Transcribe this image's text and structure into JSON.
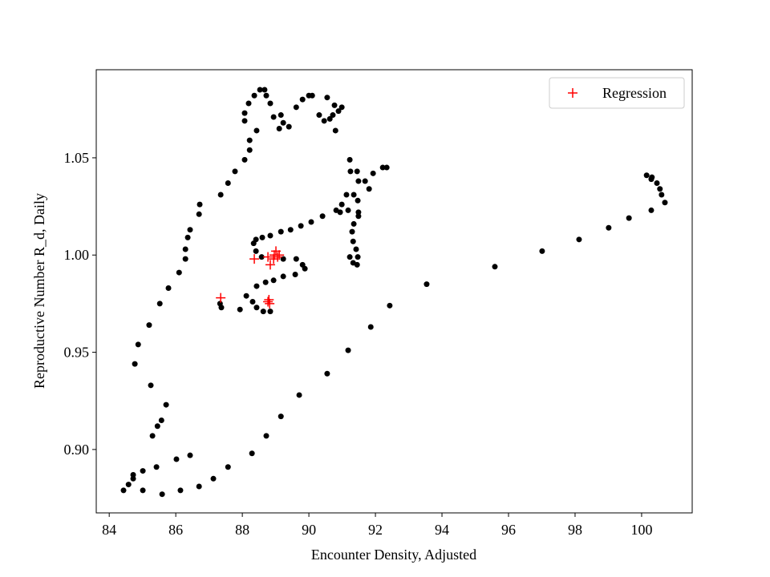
{
  "chart_data": {
    "type": "scatter",
    "xlabel": "Encounter Density, Adjusted",
    "ylabel": "Reproductive Number R_d, Daily",
    "xlim": [
      83.61,
      101.52
    ],
    "ylim": [
      0.8674,
      1.0953
    ],
    "xticks": [
      84,
      86,
      88,
      90,
      92,
      94,
      96,
      98,
      100
    ],
    "yticks": [
      {
        "value": 0.9,
        "label": "0.90"
      },
      {
        "value": 0.95,
        "label": "0.95"
      },
      {
        "value": 1.0,
        "label": "1.00"
      },
      {
        "value": 1.05,
        "label": "1.05"
      }
    ],
    "legend": "upper right",
    "series": [
      {
        "color": "#000000",
        "marker": "o",
        "x": [
          84.43,
          84.58,
          84.72,
          84.72,
          85.01,
          85.01,
          85.42,
          85.59,
          86.02,
          86.14,
          86.43,
          86.7,
          87.13,
          87.57,
          88.29,
          88.72,
          89.16,
          89.71,
          90.55,
          91.18,
          91.86,
          92.43,
          93.54,
          95.59,
          97.01,
          98.12,
          99.01,
          99.62,
          100.29,
          100.7,
          100.6,
          100.55,
          100.46,
          100.29,
          100.15,
          100.31,
          85.3,
          85.45,
          85.57,
          85.71,
          85.25,
          84.77,
          84.87,
          85.2,
          85.52,
          85.78,
          86.1,
          86.29,
          86.29,
          86.36,
          86.43,
          86.7,
          86.72,
          87.35,
          87.57,
          87.78,
          88.07,
          88.22,
          88.22,
          88.43,
          88.07,
          88.07,
          88.19,
          88.36,
          88.53,
          88.67,
          88.72,
          88.84,
          88.94,
          89.16,
          89.23,
          89.4,
          89.11,
          89.62,
          89.81,
          90.0,
          90.1,
          90.31,
          90.46,
          90.63,
          90.8,
          90.72,
          90.55,
          90.77,
          90.89,
          90.99,
          91.23,
          91.45,
          91.69,
          91.93,
          92.22,
          92.34,
          91.81,
          91.35,
          90.99,
          90.82,
          90.41,
          90.07,
          89.76,
          89.45,
          89.16,
          88.84,
          88.6,
          88.41,
          88.34,
          88.41,
          88.58,
          89.23,
          89.62,
          89.81,
          89.88,
          89.59,
          89.23,
          88.94,
          88.7,
          88.43,
          88.12,
          88.31,
          88.43,
          88.63,
          88.84,
          87.93,
          87.37,
          87.33,
          91.23,
          91.33,
          91.45,
          91.33,
          91.3,
          91.35,
          91.49,
          91.18,
          91.13,
          91.47,
          91.49,
          91.25,
          90.94,
          91.49,
          91.42,
          91.47
        ],
        "y": [
          0.879,
          0.882,
          0.885,
          0.887,
          0.889,
          0.879,
          0.891,
          0.877,
          0.895,
          0.879,
          0.897,
          0.881,
          0.885,
          0.891,
          0.898,
          0.907,
          0.917,
          0.928,
          0.939,
          0.951,
          0.963,
          0.974,
          0.985,
          0.994,
          1.002,
          1.008,
          1.014,
          1.019,
          1.023,
          1.027,
          1.031,
          1.034,
          1.037,
          1.039,
          1.041,
          1.04,
          0.907,
          0.912,
          0.915,
          0.923,
          0.933,
          0.944,
          0.954,
          0.964,
          0.975,
          0.983,
          0.991,
          0.998,
          1.003,
          1.009,
          1.013,
          1.021,
          1.026,
          1.031,
          1.037,
          1.043,
          1.049,
          1.054,
          1.059,
          1.064,
          1.069,
          1.073,
          1.078,
          1.082,
          1.085,
          1.085,
          1.082,
          1.078,
          1.071,
          1.072,
          1.068,
          1.066,
          1.065,
          1.076,
          1.08,
          1.082,
          1.082,
          1.072,
          1.069,
          1.07,
          1.064,
          1.072,
          1.081,
          1.077,
          1.074,
          1.076,
          1.049,
          1.043,
          1.038,
          1.042,
          1.045,
          1.045,
          1.034,
          1.031,
          1.026,
          1.023,
          1.02,
          1.017,
          1.015,
          1.013,
          1.012,
          1.01,
          1.009,
          1.008,
          1.006,
          1.002,
          0.999,
          0.998,
          0.998,
          0.995,
          0.993,
          0.99,
          0.989,
          0.987,
          0.986,
          0.984,
          0.979,
          0.976,
          0.973,
          0.971,
          0.971,
          0.972,
          0.973,
          0.975,
          0.999,
          0.996,
          0.995,
          1.007,
          1.012,
          1.016,
          1.02,
          1.023,
          1.031,
          1.028,
          1.038,
          1.043,
          1.022,
          1.022,
          1.003,
          0.999
        ]
      },
      {
        "name": "Regression",
        "color": "#ff0000",
        "marker": "+",
        "x": [
          87.35,
          88.36,
          88.77,
          88.96,
          89.06,
          89.01,
          88.84,
          88.94,
          89.11,
          88.8,
          88.82,
          88.77
        ],
        "y": [
          0.978,
          0.998,
          0.999,
          1.0,
          0.999,
          1.002,
          0.995,
          0.998,
          1.0,
          0.977,
          0.975,
          0.976
        ]
      }
    ]
  }
}
